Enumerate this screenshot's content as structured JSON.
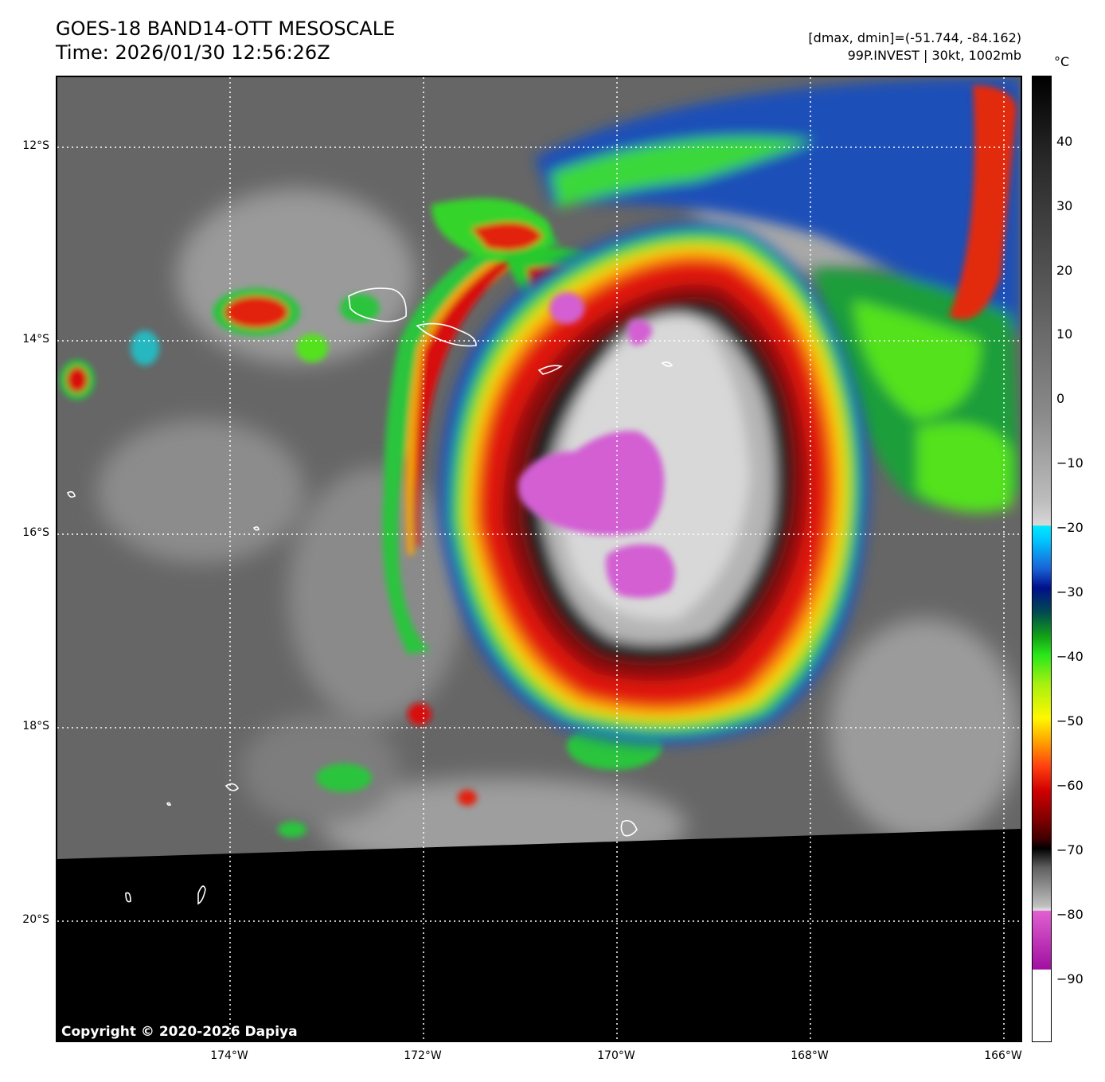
{
  "header": {
    "title_line1": "GOES-18 BAND14-OTT MESOSCALE",
    "title_line2": "Time: 2026/01/30 12:56:26Z",
    "info_line1": "[dmax, dmin]=(-51.744, -84.162)",
    "info_line2": "99P.INVEST | 30kt, 1002mb"
  },
  "map": {
    "lat_labels": [
      "12°S",
      "14°S",
      "16°S",
      "18°S",
      "20°S"
    ],
    "lon_labels": [
      "174°W",
      "172°W",
      "170°W",
      "168°W",
      "166°W"
    ],
    "copyright": "Copyright © 2020-2026 Dapiya",
    "storm_name": "99P.INVEST"
  },
  "colorbar": {
    "unit": "°C",
    "ticks": [
      "40",
      "30",
      "20",
      "10",
      "0",
      "−10",
      "−20",
      "−30",
      "−40",
      "−50",
      "−60",
      "−70",
      "−80",
      "−90"
    ]
  },
  "colors": {
    "no_data": "#000000",
    "land_outline": "#ffffff",
    "grid": "#ffffff"
  }
}
